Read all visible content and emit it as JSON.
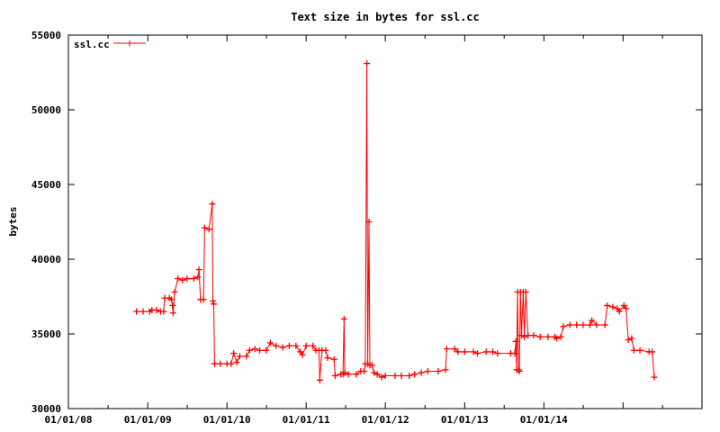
{
  "chart_data": {
    "type": "line",
    "title": "Text size in bytes for ssl.cc",
    "xlabel": "",
    "ylabel": "bytes",
    "legend": {
      "placement": "top-left",
      "entries": [
        "ssl.cc"
      ]
    },
    "series_color": "#ff0000",
    "grid": false,
    "xlim": [
      "2008-01-01",
      "2015-12-31"
    ],
    "ylim": [
      30000,
      55000
    ],
    "x_ticks": [
      "2008-01-01",
      "2009-01-01",
      "2010-01-01",
      "2011-01-01",
      "2012-01-01",
      "2013-01-01",
      "2014-01-01"
    ],
    "x_tick_labels": [
      "01/01/08",
      "01/01/09",
      "01/01/10",
      "01/01/11",
      "01/01/12",
      "01/01/13",
      "01/01/14"
    ],
    "y_ticks": [
      30000,
      35000,
      40000,
      45000,
      50000,
      55000
    ],
    "y_tick_labels": [
      "30000",
      "35000",
      "40000",
      "45000",
      "50000",
      "55000"
    ],
    "series": [
      {
        "name": "ssl.cc",
        "points": [
          [
            "2008-11-10",
            36500
          ],
          [
            "2008-12-10",
            36500
          ],
          [
            "2009-01-10",
            36500
          ],
          [
            "2009-01-20",
            36600
          ],
          [
            "2009-02-10",
            36600
          ],
          [
            "2009-03-01",
            36500
          ],
          [
            "2009-03-15",
            36500
          ],
          [
            "2009-03-20",
            37400
          ],
          [
            "2009-04-10",
            37400
          ],
          [
            "2009-04-20",
            37300
          ],
          [
            "2009-04-25",
            36900
          ],
          [
            "2009-04-28",
            36400
          ],
          [
            "2009-05-05",
            37800
          ],
          [
            "2009-05-20",
            38700
          ],
          [
            "2009-06-10",
            38600
          ],
          [
            "2009-07-01",
            38700
          ],
          [
            "2009-08-01",
            38700
          ],
          [
            "2009-08-20",
            38800
          ],
          [
            "2009-08-25",
            39300
          ],
          [
            "2009-09-01",
            37300
          ],
          [
            "2009-09-15",
            37300
          ],
          [
            "2009-09-20",
            42100
          ],
          [
            "2009-10-10",
            42000
          ],
          [
            "2009-10-25",
            43700
          ],
          [
            "2009-10-28",
            37200
          ],
          [
            "2009-11-01",
            37000
          ],
          [
            "2009-11-05",
            33000
          ],
          [
            "2009-12-01",
            33000
          ],
          [
            "2010-01-01",
            33000
          ],
          [
            "2010-01-20",
            33000
          ],
          [
            "2010-02-01",
            33700
          ],
          [
            "2010-02-15",
            33100
          ],
          [
            "2010-03-01",
            33500
          ],
          [
            "2010-04-01",
            33500
          ],
          [
            "2010-04-15",
            33900
          ],
          [
            "2010-05-10",
            34000
          ],
          [
            "2010-06-01",
            33900
          ],
          [
            "2010-07-01",
            33900
          ],
          [
            "2010-07-20",
            34400
          ],
          [
            "2010-08-15",
            34200
          ],
          [
            "2010-09-15",
            34100
          ],
          [
            "2010-10-15",
            34200
          ],
          [
            "2010-11-15",
            34200
          ],
          [
            "2010-12-05",
            33800
          ],
          [
            "2010-12-15",
            33600
          ],
          [
            "2011-01-01",
            34200
          ],
          [
            "2011-02-01",
            34200
          ],
          [
            "2011-02-15",
            33900
          ],
          [
            "2011-03-01",
            33900
          ],
          [
            "2011-03-05",
            31900
          ],
          [
            "2011-03-15",
            33900
          ],
          [
            "2011-04-01",
            33900
          ],
          [
            "2011-04-10",
            33400
          ],
          [
            "2011-05-10",
            33300
          ],
          [
            "2011-05-15",
            32200
          ],
          [
            "2011-06-10",
            32300
          ],
          [
            "2011-06-20",
            32300
          ],
          [
            "2011-06-25",
            36000
          ],
          [
            "2011-06-28",
            32400
          ],
          [
            "2011-07-15",
            32300
          ],
          [
            "2011-08-20",
            32300
          ],
          [
            "2011-09-10",
            32500
          ],
          [
            "2011-09-25",
            32500
          ],
          [
            "2011-10-01",
            33000
          ],
          [
            "2011-10-08",
            53100
          ],
          [
            "2011-10-12",
            33000
          ],
          [
            "2011-10-18",
            42500
          ],
          [
            "2011-10-22",
            32900
          ],
          [
            "2011-11-01",
            32900
          ],
          [
            "2011-11-10",
            32400
          ],
          [
            "2011-11-25",
            32300
          ],
          [
            "2011-12-15",
            32100
          ],
          [
            "2012-01-01",
            32200
          ],
          [
            "2012-02-15",
            32200
          ],
          [
            "2012-03-15",
            32200
          ],
          [
            "2012-04-20",
            32200
          ],
          [
            "2012-05-15",
            32300
          ],
          [
            "2012-06-15",
            32400
          ],
          [
            "2012-07-15",
            32500
          ],
          [
            "2012-09-01",
            32500
          ],
          [
            "2012-10-05",
            32600
          ],
          [
            "2012-10-10",
            34000
          ],
          [
            "2012-11-15",
            34000
          ],
          [
            "2012-12-01",
            33800
          ],
          [
            "2013-01-01",
            33800
          ],
          [
            "2013-02-10",
            33800
          ],
          [
            "2013-03-01",
            33700
          ],
          [
            "2013-04-10",
            33800
          ],
          [
            "2013-05-10",
            33800
          ],
          [
            "2013-06-01",
            33700
          ],
          [
            "2013-08-01",
            33700
          ],
          [
            "2013-08-20",
            33700
          ],
          [
            "2013-08-25",
            34500
          ],
          [
            "2013-08-28",
            32600
          ],
          [
            "2013-09-02",
            37800
          ],
          [
            "2013-09-06",
            32600
          ],
          [
            "2013-09-10",
            32500
          ],
          [
            "2013-09-15",
            37800
          ],
          [
            "2013-09-20",
            34900
          ],
          [
            "2013-09-28",
            37800
          ],
          [
            "2013-10-03",
            34800
          ],
          [
            "2013-10-10",
            37800
          ],
          [
            "2013-10-20",
            34900
          ],
          [
            "2013-11-15",
            34900
          ],
          [
            "2013-12-15",
            34800
          ],
          [
            "2014-01-20",
            34800
          ],
          [
            "2014-02-20",
            34800
          ],
          [
            "2014-03-01",
            34700
          ],
          [
            "2014-03-20",
            34800
          ],
          [
            "2014-04-01",
            35500
          ],
          [
            "2014-05-01",
            35600
          ],
          [
            "2014-06-01",
            35600
          ],
          [
            "2014-07-01",
            35600
          ],
          [
            "2014-08-01",
            35600
          ],
          [
            "2014-08-10",
            35900
          ],
          [
            "2014-09-01",
            35600
          ],
          [
            "2014-10-10",
            35600
          ],
          [
            "2014-10-20",
            36900
          ],
          [
            "2014-11-15",
            36800
          ],
          [
            "2014-12-05",
            36700
          ],
          [
            "2014-12-15",
            36500
          ],
          [
            "2015-01-05",
            36900
          ],
          [
            "2015-01-15",
            36700
          ],
          [
            "2015-01-25",
            34600
          ],
          [
            "2015-02-10",
            34700
          ],
          [
            "2015-02-20",
            33900
          ],
          [
            "2015-03-20",
            33900
          ],
          [
            "2015-05-01",
            33800
          ],
          [
            "2015-05-15",
            33800
          ],
          [
            "2015-05-25",
            32100
          ]
        ]
      }
    ]
  }
}
